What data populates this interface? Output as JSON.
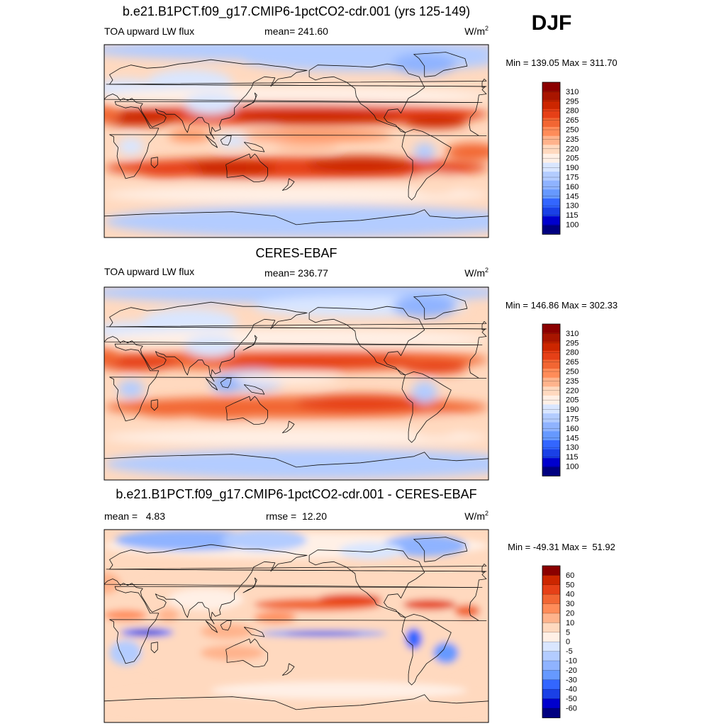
{
  "season": "DJF",
  "units_base": "W/m",
  "units_exp": "2",
  "colors": {
    "abs": [
      "#000080",
      "#0000cd",
      "#1a40e6",
      "#3366ff",
      "#6699ff",
      "#8fb3ff",
      "#b3ccff",
      "#d9e6ff",
      "#fff0e6",
      "#ffd9bf",
      "#ffb38c",
      "#ff8c59",
      "#f26633",
      "#e64017",
      "#cc2600",
      "#a81500",
      "#8b0000"
    ],
    "diff": [
      "#000080",
      "#0000cd",
      "#1a40e6",
      "#3366ff",
      "#6699ff",
      "#8fb3ff",
      "#b3ccff",
      "#d9e6ff",
      "#fff0e6",
      "#ffd9bf",
      "#ffb38c",
      "#ff8c59",
      "#f26633",
      "#e64017",
      "#cc2600",
      "#8b0000"
    ]
  },
  "panels": [
    {
      "title": "b.e21.B1PCT.f09_g17.CMIP6-1pctCO2-cdr.001 (yrs 125-149)",
      "left": "TOA upward LW flux",
      "center": "mean= 241.60",
      "minmax": "Min = 139.05 Max = 311.70",
      "kind": "abs",
      "ticks": [
        "310",
        "295",
        "280",
        "265",
        "250",
        "235",
        "220",
        "205",
        "190",
        "175",
        "160",
        "145",
        "130",
        "115",
        "100"
      ]
    },
    {
      "title": "CERES-EBAF",
      "left": "TOA upward LW flux",
      "center": "mean= 236.77",
      "minmax": "Min = 146.86 Max = 302.33",
      "kind": "abs",
      "ticks": [
        "310",
        "295",
        "280",
        "265",
        "250",
        "235",
        "220",
        "205",
        "190",
        "175",
        "160",
        "145",
        "130",
        "115",
        "100"
      ]
    },
    {
      "title": "b.e21.B1PCT.f09_g17.CMIP6-1pctCO2-cdr.001 - CERES-EBAF",
      "left": "mean =   4.83",
      "center": "rmse =  12.20",
      "minmax": "Min = -49.31 Max =  51.92",
      "kind": "diff",
      "ticks": [
        "60",
        "50",
        "40",
        "30",
        "20",
        "10",
        "5",
        "0",
        "-5",
        "-10",
        "-20",
        "-30",
        "-40",
        "-50",
        "-60"
      ]
    }
  ],
  "chart_data": [
    {
      "type": "heatmap",
      "title": "b.e21.B1PCT.f09_g17.CMIP6-1pctCO2-cdr.001 (yrs 125-149)",
      "variable": "TOA upward LW flux",
      "mean": 241.6,
      "min": 139.05,
      "max": 311.7,
      "levels": [
        100,
        115,
        130,
        145,
        160,
        175,
        190,
        205,
        220,
        235,
        250,
        265,
        280,
        295,
        310
      ]
    },
    {
      "type": "heatmap",
      "title": "CERES-EBAF",
      "variable": "TOA upward LW flux",
      "mean": 236.77,
      "min": 146.86,
      "max": 302.33,
      "levels": [
        100,
        115,
        130,
        145,
        160,
        175,
        190,
        205,
        220,
        235,
        250,
        265,
        280,
        295,
        310
      ]
    },
    {
      "type": "heatmap",
      "title": "b.e21.B1PCT.f09_g17.CMIP6-1pctCO2-cdr.001 - CERES-EBAF",
      "mean": 4.83,
      "rmse": 12.2,
      "min": -49.31,
      "max": 51.92,
      "levels": [
        -60,
        -50,
        -40,
        -30,
        -20,
        -10,
        -5,
        0,
        5,
        10,
        20,
        30,
        40,
        50,
        60
      ]
    }
  ]
}
